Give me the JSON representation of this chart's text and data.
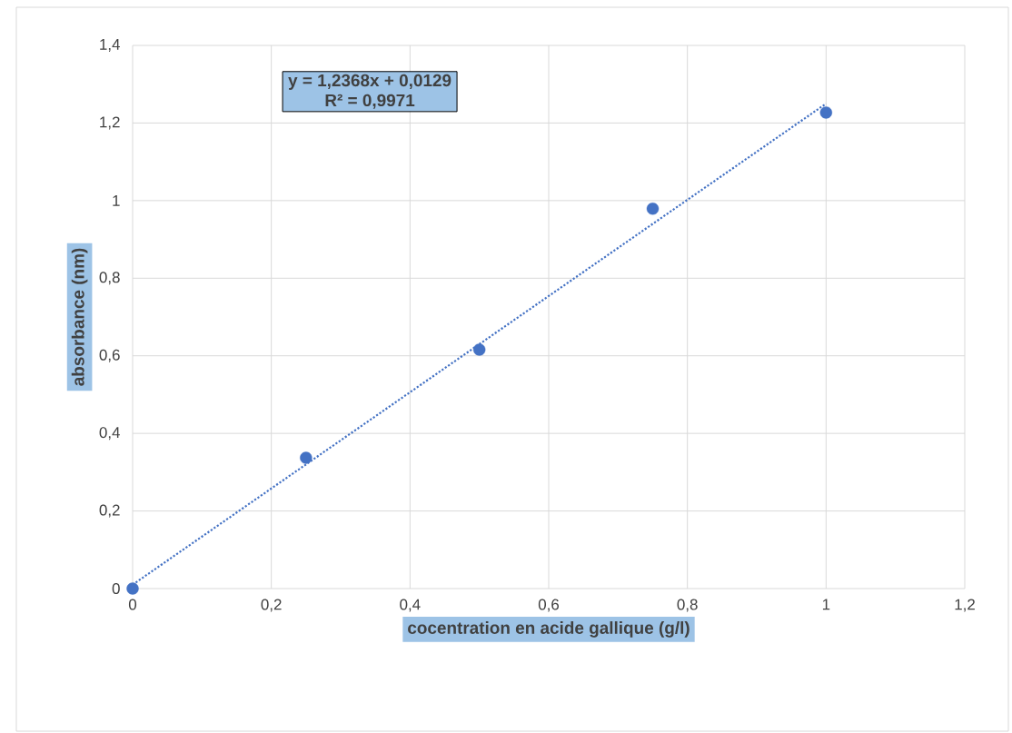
{
  "chart_data": {
    "type": "scatter",
    "xlabel": "cocentration en acide gallique (g/l)",
    "ylabel": "absorbance (nm)",
    "annotations": [
      "y = 1,2368x + 0,0129",
      "R² = 0,9971"
    ],
    "series": [
      {
        "color": "#4472c4",
        "marker": "circle",
        "x": [
          0,
          0.25,
          0.5,
          0.75,
          1
        ],
        "values": [
          0,
          0.337,
          0.616,
          0.979,
          1.227
        ]
      },
      {
        "type": "line",
        "color": "#4472c4",
        "marker": "none",
        "line_style": "dotted",
        "x": [
          0,
          1
        ],
        "values": [
          0.01,
          1.25
        ]
      }
    ],
    "xlim": [
      0,
      1.2
    ],
    "ylim": [
      0,
      1.4
    ],
    "xticks": [
      0,
      {
        "value": 0.2,
        "label": "0,2"
      },
      {
        "value": 0.4,
        "label": "0,4"
      },
      {
        "value": 0.6,
        "label": "0,6"
      },
      {
        "value": 0.8,
        "label": "0,8"
      },
      1,
      {
        "value": 1.2,
        "label": "1,2"
      }
    ],
    "yticks": [
      0,
      {
        "value": 0.2,
        "label": "0,2"
      },
      {
        "value": 0.4,
        "label": "0,4"
      },
      {
        "value": 0.6,
        "label": "0,6"
      },
      {
        "value": 0.8,
        "label": "0,8"
      },
      1,
      {
        "value": 1.2,
        "label": "1,2"
      },
      {
        "value": 1.4,
        "label": "1,4"
      }
    ],
    "grid": true
  }
}
